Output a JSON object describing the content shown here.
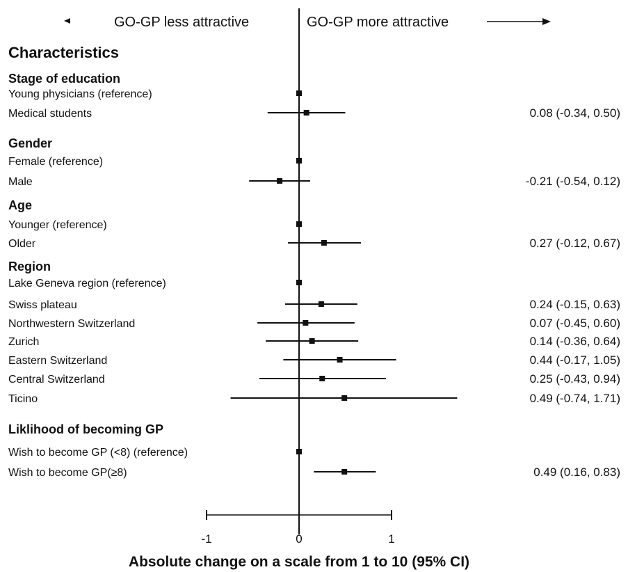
{
  "header": {
    "less_label": "GO-GP less attractive",
    "more_label": "GO-GP more attractive"
  },
  "chart_data": {
    "type": "forest",
    "section_title": "Characteristics",
    "xlabel": "Absolute change on a scale from 1 to 10 (95% CI)",
    "xticks": [
      -1,
      0,
      1
    ],
    "xlim": [
      -1.0,
      1.0
    ],
    "groups": [
      {
        "title": "Stage of education",
        "rows": [
          {
            "label": "Young physicians (reference)",
            "est": 0,
            "lo": null,
            "hi": null,
            "text": ""
          },
          {
            "label": "Medical students",
            "est": 0.08,
            "lo": -0.34,
            "hi": 0.5,
            "text": "0.08 (-0.34, 0.50)"
          }
        ]
      },
      {
        "title": "Gender",
        "rows": [
          {
            "label": "Female (reference)",
            "est": 0,
            "lo": null,
            "hi": null,
            "text": ""
          },
          {
            "label": "Male",
            "est": -0.21,
            "lo": -0.54,
            "hi": 0.12,
            "text": "-0.21 (-0.54, 0.12)"
          }
        ]
      },
      {
        "title": "Age",
        "rows": [
          {
            "label": "Younger (reference)",
            "est": 0,
            "lo": null,
            "hi": null,
            "text": ""
          },
          {
            "label": "Older",
            "est": 0.27,
            "lo": -0.12,
            "hi": 0.67,
            "text": "0.27 (-0.12, 0.67)"
          }
        ]
      },
      {
        "title": "Region",
        "rows": [
          {
            "label": "Lake Geneva region (reference)",
            "est": 0,
            "lo": null,
            "hi": null,
            "text": ""
          },
          {
            "label": "Swiss plateau",
            "est": 0.24,
            "lo": -0.15,
            "hi": 0.63,
            "text": "0.24 (-0.15, 0.63)"
          },
          {
            "label": "Northwestern Switzerland",
            "est": 0.07,
            "lo": -0.45,
            "hi": 0.6,
            "text": "0.07 (-0.45, 0.60)"
          },
          {
            "label": "Zurich",
            "est": 0.14,
            "lo": -0.36,
            "hi": 0.64,
            "text": "0.14 (-0.36, 0.64)"
          },
          {
            "label": "Eastern Switzerland",
            "est": 0.44,
            "lo": -0.17,
            "hi": 1.05,
            "text": "0.44 (-0.17, 1.05)"
          },
          {
            "label": "Central Switzerland",
            "est": 0.25,
            "lo": -0.43,
            "hi": 0.94,
            "text": "0.25 (-0.43, 0.94)"
          },
          {
            "label": "Ticino",
            "est": 0.49,
            "lo": -0.74,
            "hi": 1.71,
            "text": "0.49 (-0.74, 1.71)"
          }
        ]
      },
      {
        "title": "Liklihood of becoming GP",
        "rows": [
          {
            "label": "Wish to become GP (<8) (reference)",
            "est": 0,
            "lo": null,
            "hi": null,
            "text": ""
          },
          {
            "label": "Wish to become GP(≥8)",
            "est": 0.49,
            "lo": 0.16,
            "hi": 0.83,
            "text": "0.49 (0.16, 0.83)"
          }
        ]
      }
    ]
  }
}
